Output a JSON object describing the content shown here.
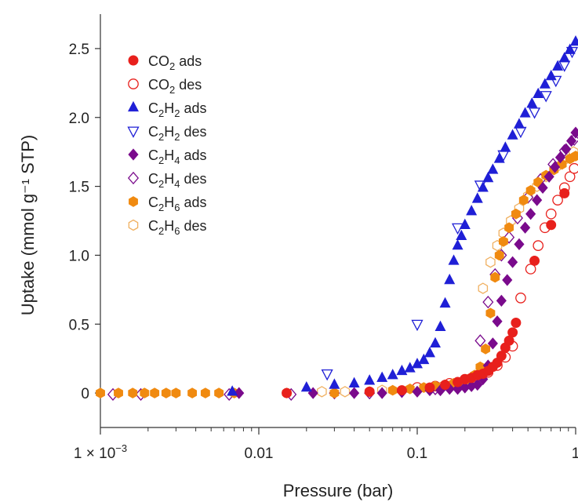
{
  "chart_data": {
    "type": "scatter",
    "xscale": "log",
    "xlim": [
      0.001,
      1
    ],
    "ylim": [
      -0.25,
      2.75
    ],
    "xlabel": "Pressure (bar)",
    "ylabel": "Uptake (mmol g⁻¹ STP)",
    "xticks": [
      {
        "value": 0.001,
        "base": "1 × 10",
        "exp": "−3"
      },
      {
        "value": 0.01,
        "base": "0.01",
        "exp": ""
      },
      {
        "value": 0.1,
        "base": "0.1",
        "exp": ""
      },
      {
        "value": 1,
        "base": "1",
        "exp": ""
      }
    ],
    "yticks": [
      {
        "value": 0,
        "label": "0"
      },
      {
        "value": 0.5,
        "label": "0.5"
      },
      {
        "value": 1.0,
        "label": "1.0"
      },
      {
        "value": 1.5,
        "label": "1.5"
      },
      {
        "value": 2.0,
        "label": "2.0"
      },
      {
        "value": 2.5,
        "label": "2.5"
      }
    ],
    "legend_position": "top-left",
    "series": [
      {
        "name": "CO2 ads",
        "species": "CO",
        "sub": "2",
        "mode": "ads",
        "marker": "circle",
        "filled": true,
        "color": "#e8201c",
        "x": [
          0.015,
          0.05,
          0.08,
          0.12,
          0.15,
          0.18,
          0.2,
          0.22,
          0.24,
          0.26,
          0.28,
          0.3,
          0.32,
          0.34,
          0.36,
          0.38,
          0.4,
          0.42,
          0.55,
          0.7,
          0.85
        ],
        "y": [
          0.0,
          0.01,
          0.02,
          0.04,
          0.06,
          0.08,
          0.1,
          0.11,
          0.13,
          0.14,
          0.16,
          0.19,
          0.22,
          0.27,
          0.33,
          0.38,
          0.44,
          0.51,
          0.96,
          1.22,
          1.45
        ]
      },
      {
        "name": "CO2 des",
        "species": "CO",
        "sub": "2",
        "mode": "des",
        "marker": "circle",
        "filled": false,
        "color": "#e8201c",
        "x": [
          0.1,
          0.13,
          0.16,
          0.2,
          0.24,
          0.28,
          0.32,
          0.36,
          0.4,
          0.45,
          0.52,
          0.58,
          0.64,
          0.7,
          0.77,
          0.85,
          0.92,
          0.98
        ],
        "y": [
          0.04,
          0.05,
          0.07,
          0.1,
          0.12,
          0.15,
          0.2,
          0.26,
          0.34,
          0.69,
          0.9,
          1.07,
          1.2,
          1.3,
          1.4,
          1.49,
          1.57,
          1.63
        ]
      },
      {
        "name": "C2H2 ads",
        "species": "C",
        "sub": "2",
        "species2": "H",
        "sub2": "2",
        "mode": "ads",
        "marker": "triangle-up",
        "filled": true,
        "color": "#1f1fd6",
        "x": [
          0.0068,
          0.02,
          0.03,
          0.04,
          0.05,
          0.06,
          0.07,
          0.08,
          0.09,
          0.1,
          0.11,
          0.12,
          0.13,
          0.14,
          0.15,
          0.16,
          0.17,
          0.18,
          0.19,
          0.2,
          0.22,
          0.24,
          0.26,
          0.28,
          0.3,
          0.33,
          0.36,
          0.4,
          0.44,
          0.48,
          0.53,
          0.58,
          0.64,
          0.7,
          0.77,
          0.85,
          0.92,
          1.0
        ],
        "y": [
          0.01,
          0.04,
          0.06,
          0.07,
          0.09,
          0.11,
          0.13,
          0.16,
          0.18,
          0.21,
          0.24,
          0.29,
          0.36,
          0.48,
          0.65,
          0.82,
          0.96,
          1.07,
          1.14,
          1.22,
          1.32,
          1.41,
          1.49,
          1.56,
          1.62,
          1.7,
          1.78,
          1.87,
          1.95,
          2.03,
          2.1,
          2.17,
          2.24,
          2.3,
          2.37,
          2.43,
          2.49,
          2.55
        ]
      },
      {
        "name": "C2H2 des",
        "species": "C",
        "sub": "2",
        "species2": "H",
        "sub2": "2",
        "mode": "des",
        "marker": "triangle-down",
        "filled": false,
        "color": "#1f1fd6",
        "x": [
          0.027,
          0.1,
          0.18,
          0.25,
          0.35,
          0.45,
          0.55,
          0.65,
          0.75,
          0.85,
          0.95
        ],
        "y": [
          0.14,
          0.5,
          1.2,
          1.51,
          1.73,
          1.9,
          2.04,
          2.16,
          2.27,
          2.38,
          2.48
        ]
      },
      {
        "name": "C2H4 ads",
        "species": "C",
        "sub": "2",
        "species2": "H",
        "sub2": "4",
        "mode": "ads",
        "marker": "diamond",
        "filled": true,
        "color": "#7a0a8c",
        "x": [
          0.0075,
          0.022,
          0.04,
          0.06,
          0.08,
          0.1,
          0.12,
          0.14,
          0.16,
          0.18,
          0.2,
          0.22,
          0.24,
          0.26,
          0.28,
          0.3,
          0.32,
          0.34,
          0.37,
          0.4,
          0.44,
          0.48,
          0.52,
          0.57,
          0.62,
          0.68,
          0.74,
          0.8,
          0.87,
          0.94,
          1.0
        ],
        "y": [
          0.0,
          0.0,
          0.0,
          0.0,
          0.01,
          0.01,
          0.02,
          0.02,
          0.03,
          0.03,
          0.04,
          0.05,
          0.06,
          0.1,
          0.2,
          0.36,
          0.52,
          0.67,
          0.82,
          0.95,
          1.08,
          1.2,
          1.3,
          1.4,
          1.49,
          1.57,
          1.64,
          1.71,
          1.77,
          1.83,
          1.89
        ]
      },
      {
        "name": "C2H4 des",
        "species": "C",
        "sub": "2",
        "species2": "H",
        "sub2": "4",
        "mode": "des",
        "marker": "diamond",
        "filled": false,
        "color": "#7a0a8c",
        "x": [
          0.0012,
          0.0018,
          0.0065,
          0.016,
          0.03,
          0.05,
          0.08,
          0.1,
          0.13,
          0.16,
          0.2,
          0.25,
          0.28,
          0.31,
          0.34,
          0.38,
          0.43,
          0.5,
          0.6,
          0.72,
          0.85,
          0.98
        ],
        "y": [
          -0.01,
          -0.01,
          -0.01,
          -0.01,
          0.0,
          0.0,
          0.01,
          0.02,
          0.03,
          0.04,
          0.07,
          0.38,
          0.66,
          0.86,
          1.0,
          1.13,
          1.27,
          1.42,
          1.55,
          1.66,
          1.76,
          1.84
        ]
      },
      {
        "name": "C2H6 ads",
        "species": "C",
        "sub": "2",
        "species2": "H",
        "sub2": "6",
        "mode": "ads",
        "marker": "hexagon",
        "filled": true,
        "color": "#f08a10",
        "x": [
          0.001,
          0.0013,
          0.0016,
          0.0019,
          0.0022,
          0.0026,
          0.003,
          0.0038,
          0.0046,
          0.0056,
          0.007,
          0.015,
          0.03,
          0.05,
          0.07,
          0.09,
          0.11,
          0.13,
          0.15,
          0.17,
          0.19,
          0.21,
          0.23,
          0.25,
          0.27,
          0.29,
          0.31,
          0.33,
          0.35,
          0.38,
          0.42,
          0.47,
          0.52,
          0.58,
          0.65,
          0.73,
          0.82,
          0.92,
          1.0
        ],
        "y": [
          0,
          0,
          0,
          0,
          0,
          0,
          0,
          0,
          0,
          0,
          0,
          0.0,
          0.0,
          0.01,
          0.02,
          0.03,
          0.04,
          0.05,
          0.06,
          0.07,
          0.08,
          0.1,
          0.13,
          0.19,
          0.32,
          0.58,
          0.84,
          1.0,
          1.1,
          1.2,
          1.3,
          1.4,
          1.47,
          1.53,
          1.58,
          1.62,
          1.66,
          1.7,
          1.72
        ]
      },
      {
        "name": "C2H6 des",
        "species": "C",
        "sub": "2",
        "species2": "H",
        "sub2": "6",
        "mode": "des",
        "marker": "hexagon",
        "filled": false,
        "color": "#f0b060",
        "x": [
          0.025,
          0.035,
          0.06,
          0.1,
          0.14,
          0.18,
          0.22,
          0.26,
          0.29,
          0.32,
          0.35,
          0.39,
          0.44,
          0.5,
          0.57,
          0.65,
          0.75,
          0.87,
          0.97
        ],
        "y": [
          0.01,
          0.01,
          0.02,
          0.03,
          0.04,
          0.06,
          0.1,
          0.76,
          0.95,
          1.07,
          1.16,
          1.25,
          1.34,
          1.43,
          1.5,
          1.57,
          1.64,
          1.7,
          1.75
        ]
      }
    ]
  }
}
